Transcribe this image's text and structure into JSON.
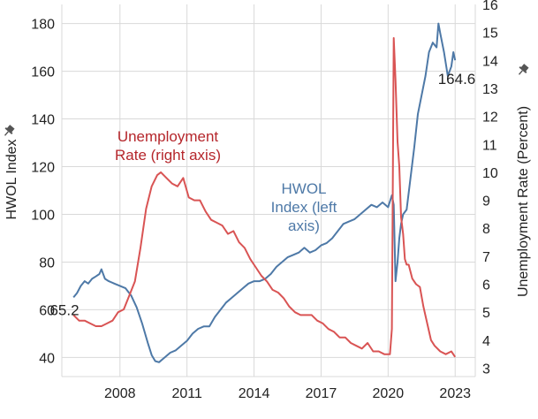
{
  "chart_data": {
    "type": "line",
    "xlabel": "",
    "x_ticks": [
      "2008",
      "2011",
      "2014",
      "2017",
      "2020",
      "2023"
    ],
    "x_range": [
      2005.4,
      2023.9
    ],
    "y_left": {
      "label": "HWOL Index",
      "ticks": [
        40,
        60,
        80,
        100,
        120,
        140,
        160,
        180
      ],
      "range": [
        32,
        188
      ]
    },
    "y_right": {
      "label": "Unemployment Rate (Percent)",
      "ticks": [
        3,
        4,
        5,
        6,
        7,
        8,
        9,
        10,
        11,
        12,
        13,
        14,
        15,
        16
      ],
      "range": [
        2.7,
        16
      ]
    },
    "grid": true,
    "series": [
      {
        "name": "HWOL Index (left axis)",
        "axis": "left",
        "color": "#4e79a7",
        "points": [
          [
            2005.92,
            65.2
          ],
          [
            2006.08,
            67
          ],
          [
            2006.25,
            70
          ],
          [
            2006.42,
            72
          ],
          [
            2006.58,
            71
          ],
          [
            2006.75,
            73
          ],
          [
            2006.92,
            74
          ],
          [
            2007.08,
            75
          ],
          [
            2007.17,
            77
          ],
          [
            2007.33,
            73
          ],
          [
            2007.5,
            72
          ],
          [
            2007.75,
            71
          ],
          [
            2008.0,
            70
          ],
          [
            2008.25,
            69
          ],
          [
            2008.5,
            66
          ],
          [
            2008.75,
            61
          ],
          [
            2009.0,
            54
          ],
          [
            2009.25,
            46
          ],
          [
            2009.42,
            41
          ],
          [
            2009.58,
            38.5
          ],
          [
            2009.75,
            38
          ],
          [
            2010.0,
            40
          ],
          [
            2010.25,
            42
          ],
          [
            2010.5,
            43
          ],
          [
            2010.75,
            45
          ],
          [
            2011.0,
            47
          ],
          [
            2011.25,
            50
          ],
          [
            2011.5,
            52
          ],
          [
            2011.75,
            53
          ],
          [
            2012.0,
            53
          ],
          [
            2012.25,
            57
          ],
          [
            2012.5,
            60
          ],
          [
            2012.75,
            63
          ],
          [
            2013.0,
            65
          ],
          [
            2013.25,
            67
          ],
          [
            2013.5,
            69
          ],
          [
            2013.75,
            71
          ],
          [
            2014.0,
            72
          ],
          [
            2014.25,
            72
          ],
          [
            2014.5,
            73
          ],
          [
            2014.75,
            75
          ],
          [
            2015.0,
            78
          ],
          [
            2015.25,
            80
          ],
          [
            2015.5,
            82
          ],
          [
            2015.75,
            83
          ],
          [
            2016.0,
            84
          ],
          [
            2016.25,
            86
          ],
          [
            2016.5,
            84
          ],
          [
            2016.75,
            85
          ],
          [
            2017.0,
            87
          ],
          [
            2017.25,
            88
          ],
          [
            2017.5,
            90
          ],
          [
            2017.75,
            93
          ],
          [
            2018.0,
            96
          ],
          [
            2018.25,
            97
          ],
          [
            2018.5,
            98
          ],
          [
            2018.75,
            100
          ],
          [
            2019.0,
            102
          ],
          [
            2019.25,
            104
          ],
          [
            2019.5,
            103
          ],
          [
            2019.75,
            105
          ],
          [
            2020.0,
            103
          ],
          [
            2020.17,
            108
          ],
          [
            2020.25,
            104
          ],
          [
            2020.33,
            72
          ],
          [
            2020.42,
            80
          ],
          [
            2020.5,
            90
          ],
          [
            2020.58,
            96
          ],
          [
            2020.67,
            100
          ],
          [
            2020.83,
            102
          ],
          [
            2021.0,
            115
          ],
          [
            2021.17,
            128
          ],
          [
            2021.33,
            142
          ],
          [
            2021.5,
            150
          ],
          [
            2021.67,
            158
          ],
          [
            2021.83,
            168
          ],
          [
            2022.0,
            172
          ],
          [
            2022.17,
            170
          ],
          [
            2022.25,
            180
          ],
          [
            2022.33,
            176
          ],
          [
            2022.5,
            168
          ],
          [
            2022.67,
            158
          ],
          [
            2022.83,
            162
          ],
          [
            2022.92,
            168
          ],
          [
            2023.0,
            164.6
          ]
        ]
      },
      {
        "name": "Unemployment Rate (right axis)",
        "axis": "right",
        "color": "#d95454",
        "points": [
          [
            2005.92,
            4.9
          ],
          [
            2006.17,
            4.7
          ],
          [
            2006.42,
            4.7
          ],
          [
            2006.67,
            4.6
          ],
          [
            2006.92,
            4.5
          ],
          [
            2007.17,
            4.5
          ],
          [
            2007.42,
            4.6
          ],
          [
            2007.67,
            4.7
          ],
          [
            2007.92,
            5.0
          ],
          [
            2008.17,
            5.1
          ],
          [
            2008.42,
            5.6
          ],
          [
            2008.67,
            6.1
          ],
          [
            2008.92,
            7.3
          ],
          [
            2009.17,
            8.7
          ],
          [
            2009.42,
            9.5
          ],
          [
            2009.67,
            9.9
          ],
          [
            2009.83,
            10.0
          ],
          [
            2010.08,
            9.8
          ],
          [
            2010.33,
            9.6
          ],
          [
            2010.58,
            9.5
          ],
          [
            2010.83,
            9.8
          ],
          [
            2011.08,
            9.1
          ],
          [
            2011.33,
            9.0
          ],
          [
            2011.58,
            9.0
          ],
          [
            2011.83,
            8.6
          ],
          [
            2012.08,
            8.3
          ],
          [
            2012.33,
            8.2
          ],
          [
            2012.58,
            8.1
          ],
          [
            2012.83,
            7.8
          ],
          [
            2013.08,
            7.9
          ],
          [
            2013.33,
            7.5
          ],
          [
            2013.58,
            7.3
          ],
          [
            2013.83,
            6.9
          ],
          [
            2014.08,
            6.6
          ],
          [
            2014.33,
            6.3
          ],
          [
            2014.58,
            6.1
          ],
          [
            2014.83,
            5.8
          ],
          [
            2015.08,
            5.7
          ],
          [
            2015.33,
            5.5
          ],
          [
            2015.58,
            5.2
          ],
          [
            2015.83,
            5.0
          ],
          [
            2016.08,
            4.9
          ],
          [
            2016.33,
            4.9
          ],
          [
            2016.58,
            4.9
          ],
          [
            2016.83,
            4.7
          ],
          [
            2017.08,
            4.6
          ],
          [
            2017.33,
            4.4
          ],
          [
            2017.58,
            4.3
          ],
          [
            2017.83,
            4.1
          ],
          [
            2018.08,
            4.1
          ],
          [
            2018.33,
            3.9
          ],
          [
            2018.58,
            3.8
          ],
          [
            2018.83,
            3.7
          ],
          [
            2019.08,
            3.9
          ],
          [
            2019.33,
            3.6
          ],
          [
            2019.58,
            3.6
          ],
          [
            2019.83,
            3.5
          ],
          [
            2020.08,
            3.5
          ],
          [
            2020.17,
            4.4
          ],
          [
            2020.25,
            14.8
          ],
          [
            2020.33,
            13.3
          ],
          [
            2020.42,
            11.1
          ],
          [
            2020.5,
            10.2
          ],
          [
            2020.58,
            8.4
          ],
          [
            2020.67,
            7.8
          ],
          [
            2020.75,
            6.9
          ],
          [
            2020.83,
            6.7
          ],
          [
            2020.92,
            6.7
          ],
          [
            2021.08,
            6.2
          ],
          [
            2021.25,
            6.0
          ],
          [
            2021.42,
            5.9
          ],
          [
            2021.58,
            5.2
          ],
          [
            2021.75,
            4.6
          ],
          [
            2021.92,
            4.0
          ],
          [
            2022.08,
            3.8
          ],
          [
            2022.33,
            3.6
          ],
          [
            2022.58,
            3.5
          ],
          [
            2022.83,
            3.6
          ],
          [
            2023.0,
            3.4
          ]
        ]
      }
    ],
    "annotations": [
      {
        "text": "65.2",
        "series": "HWOL Index (left axis)",
        "x": 2005.92,
        "y": 65.2,
        "axis": "left"
      },
      {
        "text": "164.6",
        "series": "HWOL Index (left axis)",
        "x": 2023.0,
        "y": 164.6,
        "axis": "left"
      }
    ],
    "series_labels": {
      "unemployment": [
        "Unemployment",
        "Rate (right axis)"
      ],
      "hwol": [
        "HWOL",
        "Index (left",
        "axis)"
      ]
    }
  }
}
